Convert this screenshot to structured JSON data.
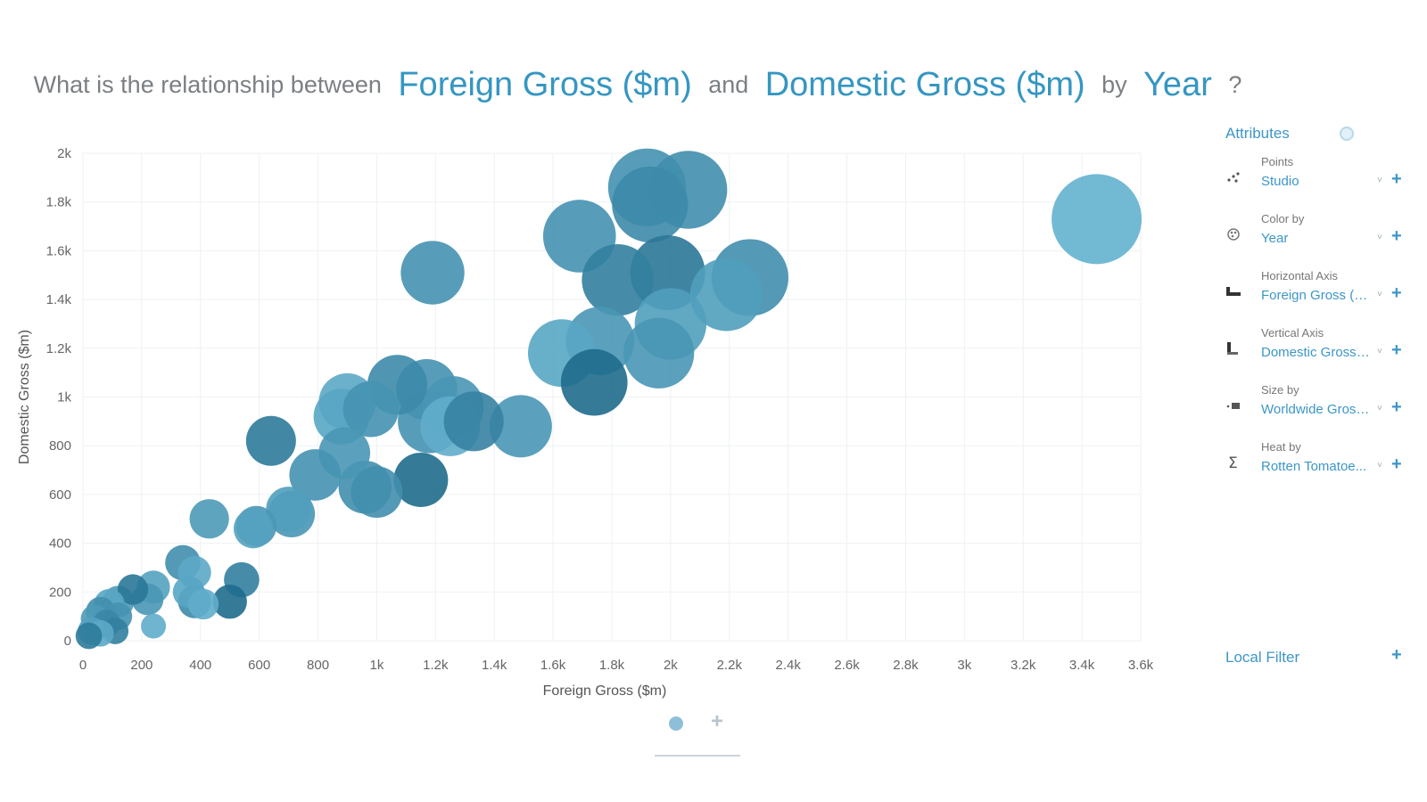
{
  "question": {
    "prefix": "What is the relationship between",
    "x_field": "Foreign Gross ($m)",
    "conj": "and",
    "y_field": "Domestic Gross ($m)",
    "by": "by",
    "group_field": "Year",
    "suffix": "?"
  },
  "panel": {
    "title": "Attributes",
    "rows": [
      {
        "label": "Points",
        "value": "Studio",
        "icon": "scatter-points-icon"
      },
      {
        "label": "Color by",
        "value": "Year",
        "icon": "palette-icon"
      },
      {
        "label": "Horizontal Axis",
        "value": "Foreign Gross ($...",
        "icon": "horizontal-axis-icon"
      },
      {
        "label": "Vertical Axis",
        "value": "Domestic Gross ...",
        "icon": "vertical-axis-icon"
      },
      {
        "label": "Size by",
        "value": "Worldwide Gross ...",
        "icon": "size-icon"
      },
      {
        "label": "Heat by",
        "value": "Rotten Tomatoe...",
        "icon": "sigma-icon"
      }
    ],
    "local_filter": "Local Filter",
    "plus": "+",
    "caret": "˅"
  },
  "colors": {
    "accent": "#3c96c8",
    "bubble_light": "#6bb9d6",
    "bubble_dark": "#1f6b8c"
  },
  "chart_data": {
    "type": "scatter",
    "xlabel": "Foreign Gross ($m)",
    "ylabel": "Domestic Gross ($m)",
    "xlim": [
      0,
      3600
    ],
    "ylim": [
      0,
      2000
    ],
    "xticks": [
      0,
      200,
      400,
      600,
      800,
      1000,
      1200,
      1400,
      1600,
      1800,
      2000,
      2200,
      2400,
      2600,
      2800,
      3000,
      3200,
      3400,
      3600
    ],
    "xtick_labels": [
      "0",
      "200",
      "400",
      "600",
      "800",
      "1k",
      "1.2k",
      "1.4k",
      "1.6k",
      "1.8k",
      "2k",
      "2.2k",
      "2.4k",
      "2.6k",
      "2.8k",
      "3k",
      "3.2k",
      "3.4k",
      "3.6k"
    ],
    "yticks": [
      0,
      200,
      400,
      600,
      800,
      1000,
      1200,
      1400,
      1600,
      1800,
      2000
    ],
    "ytick_labels": [
      "0",
      "200",
      "400",
      "600",
      "800",
      "1k",
      "1.2k",
      "1.4k",
      "1.6k",
      "1.8k",
      "2k"
    ],
    "grid": true,
    "size_field": "Worldwide Gross ($m)",
    "color_field": "Year",
    "points": [
      {
        "x": 3450,
        "y": 1730,
        "size": 5200,
        "shade": 0.1
      },
      {
        "x": 1920,
        "y": 1860,
        "size": 3900,
        "shade": 0.5
      },
      {
        "x": 2060,
        "y": 1850,
        "size": 3900,
        "shade": 0.55
      },
      {
        "x": 1930,
        "y": 1790,
        "size": 3700,
        "shade": 0.6
      },
      {
        "x": 1690,
        "y": 1660,
        "size": 3400,
        "shade": 0.5
      },
      {
        "x": 1820,
        "y": 1480,
        "size": 3300,
        "shade": 0.75
      },
      {
        "x": 1990,
        "y": 1510,
        "size": 3600,
        "shade": 0.85
      },
      {
        "x": 2270,
        "y": 1490,
        "size": 3800,
        "shade": 0.55
      },
      {
        "x": 2190,
        "y": 1420,
        "size": 3400,
        "shade": 0.35
      },
      {
        "x": 2000,
        "y": 1300,
        "size": 3300,
        "shade": 0.35
      },
      {
        "x": 1960,
        "y": 1180,
        "size": 3200,
        "shade": 0.45
      },
      {
        "x": 1760,
        "y": 1230,
        "size": 3000,
        "shade": 0.45
      },
      {
        "x": 1630,
        "y": 1180,
        "size": 2950,
        "shade": 0.25
      },
      {
        "x": 1740,
        "y": 1060,
        "size": 2850,
        "shade": 1.0
      },
      {
        "x": 1190,
        "y": 1510,
        "size": 2600,
        "shade": 0.5
      },
      {
        "x": 1070,
        "y": 1050,
        "size": 2300,
        "shade": 0.6
      },
      {
        "x": 1170,
        "y": 1030,
        "size": 2400,
        "shade": 0.5
      },
      {
        "x": 1260,
        "y": 960,
        "size": 2400,
        "shade": 0.45
      },
      {
        "x": 1180,
        "y": 900,
        "size": 2600,
        "shade": 0.5
      },
      {
        "x": 1250,
        "y": 880,
        "size": 2300,
        "shade": 0.15
      },
      {
        "x": 1330,
        "y": 900,
        "size": 2300,
        "shade": 0.7
      },
      {
        "x": 1490,
        "y": 880,
        "size": 2500,
        "shade": 0.45
      },
      {
        "x": 900,
        "y": 980,
        "size": 2100,
        "shade": 0.2
      },
      {
        "x": 880,
        "y": 920,
        "size": 2000,
        "shade": 0.25
      },
      {
        "x": 980,
        "y": 950,
        "size": 2000,
        "shade": 0.5
      },
      {
        "x": 640,
        "y": 820,
        "size": 1600,
        "shade": 0.8
      },
      {
        "x": 890,
        "y": 770,
        "size": 1700,
        "shade": 0.45
      },
      {
        "x": 790,
        "y": 680,
        "size": 1700,
        "shade": 0.5
      },
      {
        "x": 960,
        "y": 630,
        "size": 1800,
        "shade": 0.55
      },
      {
        "x": 1000,
        "y": 610,
        "size": 1700,
        "shade": 0.55
      },
      {
        "x": 1150,
        "y": 660,
        "size": 1900,
        "shade": 1.0
      },
      {
        "x": 710,
        "y": 520,
        "size": 1400,
        "shade": 0.45
      },
      {
        "x": 700,
        "y": 540,
        "size": 1300,
        "shade": 0.35
      },
      {
        "x": 430,
        "y": 500,
        "size": 1000,
        "shade": 0.4
      },
      {
        "x": 590,
        "y": 470,
        "size": 1050,
        "shade": 0.45
      },
      {
        "x": 580,
        "y": 460,
        "size": 1000,
        "shade": 0.3
      },
      {
        "x": 340,
        "y": 320,
        "size": 800,
        "shade": 0.55
      },
      {
        "x": 380,
        "y": 280,
        "size": 700,
        "shade": 0.2
      },
      {
        "x": 540,
        "y": 250,
        "size": 800,
        "shade": 0.75
      },
      {
        "x": 500,
        "y": 160,
        "size": 750,
        "shade": 1.0
      },
      {
        "x": 360,
        "y": 200,
        "size": 650,
        "shade": 0.25
      },
      {
        "x": 410,
        "y": 150,
        "size": 600,
        "shade": 0.15
      },
      {
        "x": 380,
        "y": 160,
        "size": 700,
        "shade": 0.6
      },
      {
        "x": 240,
        "y": 220,
        "size": 700,
        "shade": 0.3
      },
      {
        "x": 220,
        "y": 170,
        "size": 650,
        "shade": 0.45
      },
      {
        "x": 170,
        "y": 210,
        "size": 600,
        "shade": 0.85
      },
      {
        "x": 120,
        "y": 160,
        "size": 650,
        "shade": 0.4
      },
      {
        "x": 90,
        "y": 150,
        "size": 600,
        "shade": 0.25
      },
      {
        "x": 60,
        "y": 120,
        "size": 550,
        "shade": 0.55
      },
      {
        "x": 40,
        "y": 90,
        "size": 500,
        "shade": 0.4
      },
      {
        "x": 120,
        "y": 100,
        "size": 500,
        "shade": 0.5
      },
      {
        "x": 80,
        "y": 70,
        "size": 500,
        "shade": 0.65
      },
      {
        "x": 110,
        "y": 40,
        "size": 450,
        "shade": 0.75
      },
      {
        "x": 30,
        "y": 40,
        "size": 500,
        "shade": 0.3
      },
      {
        "x": 60,
        "y": 30,
        "size": 450,
        "shade": 0.2
      },
      {
        "x": 20,
        "y": 20,
        "size": 450,
        "shade": 0.8
      },
      {
        "x": 240,
        "y": 60,
        "size": 400,
        "shade": 0.15
      }
    ]
  }
}
